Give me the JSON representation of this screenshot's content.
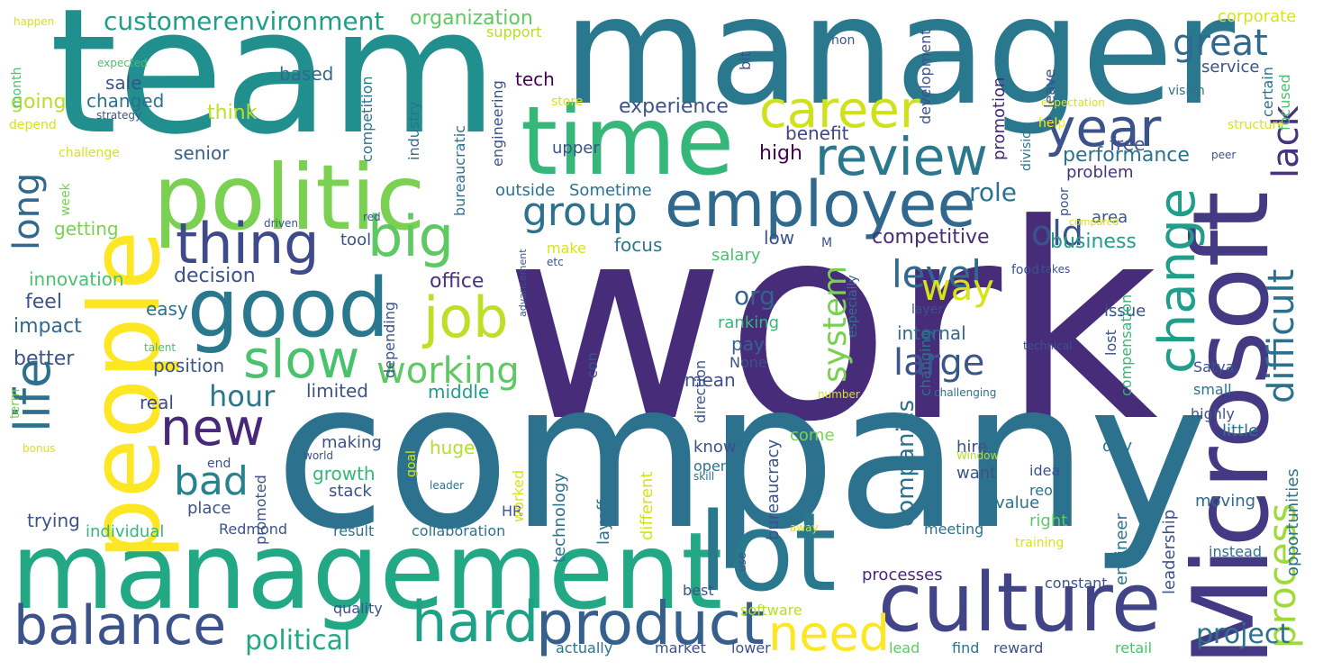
{
  "words": [
    {
      "text": "work",
      "color": "#472c7a"
    },
    {
      "text": "company",
      "color": "#2c728e"
    },
    {
      "text": "team",
      "color": "#218f8d"
    },
    {
      "text": "manager",
      "color": "#2a788e"
    },
    {
      "text": "management",
      "color": "#22a884"
    },
    {
      "text": "Microsoft",
      "color": "#443983"
    },
    {
      "text": "people",
      "color": "#fde725"
    },
    {
      "text": "politic",
      "color": "#7ad151"
    },
    {
      "text": "time",
      "color": "#35b779"
    },
    {
      "text": "lot",
      "color": "#2a788e"
    },
    {
      "text": "culture",
      "color": "#414487"
    },
    {
      "text": "good",
      "color": "#2a788e"
    },
    {
      "text": "employee",
      "color": "#31688e"
    },
    {
      "text": "product",
      "color": "#355f8d"
    },
    {
      "text": "balance",
      "color": "#3b528b"
    },
    {
      "text": "hard",
      "color": "#1fa187"
    },
    {
      "text": "thing",
      "color": "#3e4a89"
    },
    {
      "text": "big",
      "color": "#5ec962"
    },
    {
      "text": "job",
      "color": "#bddf26"
    },
    {
      "text": "slow",
      "color": "#4ac16d"
    },
    {
      "text": "career",
      "color": "#d0e11c"
    },
    {
      "text": "review",
      "color": "#2a788e"
    },
    {
      "text": "year",
      "color": "#3b528b"
    },
    {
      "text": "change",
      "color": "#1f9e89"
    },
    {
      "text": "new",
      "color": "#482878"
    },
    {
      "text": "life",
      "color": "#2c728e"
    },
    {
      "text": "need",
      "color": "#fde725"
    },
    {
      "text": "group",
      "color": "#2c728e"
    },
    {
      "text": "process",
      "color": "#a0da39"
    },
    {
      "text": "bad",
      "color": "#26828e"
    },
    {
      "text": "level",
      "color": "#31688e"
    },
    {
      "text": "large",
      "color": "#39568c"
    },
    {
      "text": "difficult",
      "color": "#2e6f8e"
    },
    {
      "text": "long",
      "color": "#31688e"
    },
    {
      "text": "working",
      "color": "#5ec962"
    },
    {
      "text": "way",
      "color": "#d8e219"
    },
    {
      "text": "old",
      "color": "#3b528b"
    },
    {
      "text": "lack",
      "color": "#46327e"
    },
    {
      "text": "great",
      "color": "#31688e"
    },
    {
      "text": "system",
      "color": "#7ad151"
    },
    {
      "text": "hour",
      "color": "#2a788e"
    },
    {
      "text": "customer",
      "color": "#1f9e89"
    },
    {
      "text": "environment",
      "color": "#1f9e89"
    },
    {
      "text": "political",
      "color": "#22a884"
    },
    {
      "text": "project",
      "color": "#2c728e"
    },
    {
      "text": "org",
      "color": "#33638d"
    },
    {
      "text": "role",
      "color": "#2c728e"
    },
    {
      "text": "companies",
      "color": "#2c728e"
    },
    {
      "text": "decision",
      "color": "#3b528b"
    },
    {
      "text": "office",
      "color": "#46327e"
    },
    {
      "text": "organization",
      "color": "#5ec962"
    },
    {
      "text": "experience",
      "color": "#3b528b"
    },
    {
      "text": "performance",
      "color": "#2c728e"
    },
    {
      "text": "competitive",
      "color": "#472d7b"
    },
    {
      "text": "business",
      "color": "#1f9e89"
    },
    {
      "text": "benefit",
      "color": "#414487"
    },
    {
      "text": "high",
      "color": "#440154"
    },
    {
      "text": "tech",
      "color": "#440154"
    },
    {
      "text": "sale",
      "color": "#3b528b"
    },
    {
      "text": "changed",
      "color": "#2c728e"
    },
    {
      "text": "think",
      "color": "#bddf26"
    },
    {
      "text": "senior",
      "color": "#35608d"
    },
    {
      "text": "going",
      "color": "#b5de2b"
    },
    {
      "text": "based",
      "color": "#31688e"
    },
    {
      "text": "getting",
      "color": "#7ad151"
    },
    {
      "text": "innovation",
      "color": "#4ac16d"
    },
    {
      "text": "feel",
      "color": "#39568c"
    },
    {
      "text": "impact",
      "color": "#31688e"
    },
    {
      "text": "easy",
      "color": "#2c728e"
    },
    {
      "text": "better",
      "color": "#3b528b"
    },
    {
      "text": "position",
      "color": "#39568c"
    },
    {
      "text": "limited",
      "color": "#3b528b"
    },
    {
      "text": "middle",
      "color": "#1f9e89"
    },
    {
      "text": "real",
      "color": "#3e4989"
    },
    {
      "text": "pay",
      "color": "#33638d"
    },
    {
      "text": "mean",
      "color": "#3b528b"
    },
    {
      "text": "ranking",
      "color": "#35b779"
    },
    {
      "text": "internal",
      "color": "#31688e"
    },
    {
      "text": "issue",
      "color": "#3b528b"
    },
    {
      "text": "free",
      "color": "#3b528b"
    },
    {
      "text": "area",
      "color": "#39568c"
    },
    {
      "text": "problem",
      "color": "#46327e"
    },
    {
      "text": "salary",
      "color": "#4ac16d"
    },
    {
      "text": "focus",
      "color": "#2a788e"
    },
    {
      "text": "low",
      "color": "#3b528b"
    },
    {
      "text": "tool",
      "color": "#3b528b"
    },
    {
      "text": "make",
      "color": "#d8e219"
    },
    {
      "text": "outside",
      "color": "#2c728e"
    },
    {
      "text": "Sometime",
      "color": "#2c728e"
    },
    {
      "text": "upper",
      "color": "#3b528b"
    },
    {
      "text": "support",
      "color": "#b5de2b"
    },
    {
      "text": "corporate",
      "color": "#d8e219"
    },
    {
      "text": "service",
      "color": "#3b528b"
    },
    {
      "text": "know",
      "color": "#3b528b"
    },
    {
      "text": "open",
      "color": "#2c728e"
    },
    {
      "text": "growth",
      "color": "#35b779"
    },
    {
      "text": "making",
      "color": "#3b528b"
    },
    {
      "text": "come",
      "color": "#7ad151"
    },
    {
      "text": "huge",
      "color": "#b5de2b"
    },
    {
      "text": "stack",
      "color": "#3b528b"
    },
    {
      "text": "want",
      "color": "#3b528b"
    },
    {
      "text": "hire",
      "color": "#3b528b"
    },
    {
      "text": "day",
      "color": "#2c728e"
    },
    {
      "text": "little",
      "color": "#2c728e"
    },
    {
      "text": "idea",
      "color": "#3b528b"
    },
    {
      "text": "value",
      "color": "#2c728e"
    },
    {
      "text": "reorg",
      "color": "#2c728e"
    },
    {
      "text": "moving",
      "color": "#31688e"
    },
    {
      "text": "right",
      "color": "#5ec962"
    },
    {
      "text": "meeting",
      "color": "#2c728e"
    },
    {
      "text": "place",
      "color": "#3b528b"
    },
    {
      "text": "trying",
      "color": "#3b528b"
    },
    {
      "text": "individual",
      "color": "#35b779"
    },
    {
      "text": "Redmond",
      "color": "#3b528b"
    },
    {
      "text": "result",
      "color": "#2c728e"
    },
    {
      "text": "collaboration",
      "color": "#2c728e"
    },
    {
      "text": "HR",
      "color": "#3b528b"
    },
    {
      "text": "processes",
      "color": "#482878"
    },
    {
      "text": "constant",
      "color": "#3b528b"
    },
    {
      "text": "best",
      "color": "#3b528b"
    },
    {
      "text": "quality",
      "color": "#3b528b"
    },
    {
      "text": "software",
      "color": "#b5de2b"
    },
    {
      "text": "market",
      "color": "#3b528b"
    },
    {
      "text": "lower",
      "color": "#3b528b"
    },
    {
      "text": "actually",
      "color": "#2c728e"
    },
    {
      "text": "lead",
      "color": "#5ec962"
    },
    {
      "text": "find",
      "color": "#2c728e"
    },
    {
      "text": "reward",
      "color": "#3b528b"
    },
    {
      "text": "retail",
      "color": "#4ac16d"
    },
    {
      "text": "instead",
      "color": "#2c728e"
    },
    {
      "text": "small",
      "color": "#2c728e"
    },
    {
      "text": "Satya",
      "color": "#3b528b"
    },
    {
      "text": "highly",
      "color": "#3b528b"
    },
    {
      "text": "food",
      "color": "#3b528b"
    },
    {
      "text": "poor",
      "color": "#3b528b"
    },
    {
      "text": "help",
      "color": "#fde725"
    },
    {
      "text": "store",
      "color": "#d8e219"
    },
    {
      "text": "vision",
      "color": "#2c728e"
    },
    {
      "text": "expectation",
      "color": "#d8e219"
    },
    {
      "text": "structure",
      "color": "#d8e219"
    },
    {
      "text": "peer",
      "color": "#3b528b"
    },
    {
      "text": "certain",
      "color": "#2c728e"
    },
    {
      "text": "focused",
      "color": "#4ac16d"
    },
    {
      "text": "compared",
      "color": "#d8e219"
    },
    {
      "text": "takes",
      "color": "#3b528b"
    },
    {
      "text": "lost",
      "color": "#3b528b"
    },
    {
      "text": "technical",
      "color": "#3b528b"
    },
    {
      "text": "challenging",
      "color": "#2c728e"
    },
    {
      "text": "layer",
      "color": "#3b528b"
    },
    {
      "text": "number",
      "color": "#d8e219"
    },
    {
      "text": "None",
      "color": "#3b528b"
    },
    {
      "text": "talent",
      "color": "#4ac16d"
    },
    {
      "text": "happen",
      "color": "#d8e219"
    },
    {
      "text": "expected",
      "color": "#4ac16d"
    },
    {
      "text": "strategy",
      "color": "#3b528b"
    },
    {
      "text": "depend",
      "color": "#d8e219"
    },
    {
      "text": "challenge",
      "color": "#d8e219"
    },
    {
      "text": "week",
      "color": "#7ad151"
    },
    {
      "text": "bonus",
      "color": "#d8e219"
    },
    {
      "text": "driven",
      "color": "#3b528b"
    },
    {
      "text": "red",
      "color": "#3b528b"
    },
    {
      "text": "M",
      "color": "#3b528b"
    },
    {
      "text": "etc",
      "color": "#3b528b"
    },
    {
      "text": "advancement",
      "color": "#3b528b"
    },
    {
      "text": "world",
      "color": "#3b528b"
    },
    {
      "text": "end",
      "color": "#3b528b"
    },
    {
      "text": "leader",
      "color": "#2c728e"
    },
    {
      "text": "skill",
      "color": "#2c728e"
    },
    {
      "text": "Window",
      "color": "#b5de2b"
    },
    {
      "text": "away",
      "color": "#d8e219"
    },
    {
      "text": "training",
      "color": "#d8e219"
    },
    {
      "text": "use",
      "color": "#3b528b"
    },
    {
      "text": "non",
      "color": "#3b528b"
    },
    {
      "text": "month",
      "color": "#4ac16d"
    },
    {
      "text": "bit",
      "color": "#3b528b"
    },
    {
      "text": "competition",
      "color": "#2c728e"
    },
    {
      "text": "industry",
      "color": "#2c728e"
    },
    {
      "text": "bureaucratic",
      "color": "#2c728e"
    },
    {
      "text": "engineering",
      "color": "#3b528b"
    },
    {
      "text": "development",
      "color": "#3b528b"
    },
    {
      "text": "promotion",
      "color": "#482878"
    },
    {
      "text": "leave",
      "color": "#3b528b"
    },
    {
      "text": "division",
      "color": "#2c728e"
    },
    {
      "text": "depending",
      "color": "#3b528b"
    },
    {
      "text": "con",
      "color": "#3b528b"
    },
    {
      "text": "direction",
      "color": "#3b528b"
    },
    {
      "text": "especially",
      "color": "#2c728e"
    },
    {
      "text": "changing",
      "color": "#2c728e"
    },
    {
      "text": "compensation",
      "color": "#35b779"
    },
    {
      "text": "opportunities",
      "color": "#2c728e"
    },
    {
      "text": "leadership",
      "color": "#3b528b"
    },
    {
      "text": "engineer",
      "color": "#2c728e"
    },
    {
      "text": "bureaucracy",
      "color": "#3b528b"
    },
    {
      "text": "different",
      "color": "#d8e219"
    },
    {
      "text": "layoff",
      "color": "#2c728e"
    },
    {
      "text": "technology",
      "color": "#2c728e"
    },
    {
      "text": "worked",
      "color": "#d8e219"
    },
    {
      "text": "promoted",
      "color": "#3b528b"
    },
    {
      "text": "goal",
      "color": "#d8e219"
    },
    {
      "text": "term",
      "color": "#7ad151"
    }
  ]
}
